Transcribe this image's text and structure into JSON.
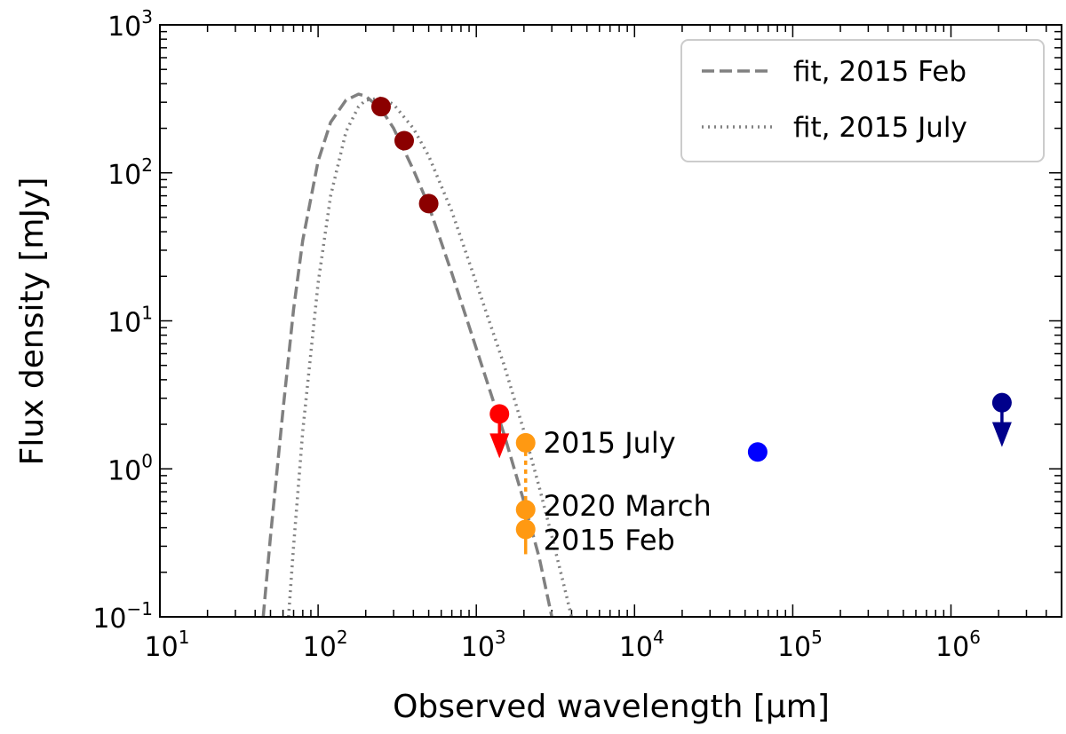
{
  "chart_data": {
    "type": "scatter",
    "title": "",
    "xlabel": "Observed wavelength [μm]",
    "ylabel": "Flux density [mJy]",
    "xscale": "log",
    "yscale": "log",
    "xlim": [
      10,
      5000000
    ],
    "ylim": [
      0.1,
      1000
    ],
    "grid": false,
    "x_ticks": [
      {
        "base": "10",
        "exp": "1",
        "value": 10
      },
      {
        "base": "10",
        "exp": "2",
        "value": 100
      },
      {
        "base": "10",
        "exp": "3",
        "value": 1000
      },
      {
        "base": "10",
        "exp": "4",
        "value": 10000
      },
      {
        "base": "10",
        "exp": "5",
        "value": 100000
      },
      {
        "base": "10",
        "exp": "6",
        "value": 1000000
      }
    ],
    "y_ticks": [
      {
        "base": "10",
        "exp": "−1",
        "value": 0.1
      },
      {
        "base": "10",
        "exp": "0",
        "value": 1
      },
      {
        "base": "10",
        "exp": "1",
        "value": 10
      },
      {
        "base": "10",
        "exp": "2",
        "value": 100
      },
      {
        "base": "10",
        "exp": "3",
        "value": 1000
      }
    ],
    "legend": {
      "placement": "upper right",
      "entries": [
        {
          "label": "fit, 2015 Feb",
          "style": "dashed",
          "color": "#808080"
        },
        {
          "label": "fit, 2015 July",
          "style": "dotted",
          "color": "#808080"
        }
      ]
    },
    "series": [
      {
        "name": "fit, 2015 Feb",
        "kind": "line",
        "style": "dashed",
        "color": "#808080",
        "x": [
          45,
          50,
          60,
          70,
          80,
          100,
          120,
          150,
          180,
          200,
          250,
          300,
          400,
          500,
          700,
          1000,
          1500,
          2000,
          2500,
          3000
        ],
        "y": [
          0.1,
          0.35,
          2.5,
          12,
          35,
          120,
          220,
          310,
          340,
          330,
          270,
          200,
          105,
          60,
          21,
          6.5,
          1.7,
          0.6,
          0.25,
          0.1
        ]
      },
      {
        "name": "fit, 2015 July",
        "kind": "line",
        "style": "dotted",
        "color": "#808080",
        "x": [
          65,
          70,
          80,
          100,
          120,
          150,
          180,
          200,
          250,
          300,
          400,
          500,
          700,
          1000,
          1500,
          2000,
          2500,
          3000,
          3500,
          4000
        ],
        "y": [
          0.1,
          0.3,
          1.8,
          18,
          70,
          190,
          280,
          310,
          320,
          290,
          200,
          130,
          55,
          18,
          5,
          1.8,
          0.75,
          0.35,
          0.18,
          0.1
        ]
      },
      {
        "name": "dark red detections",
        "kind": "points",
        "color": "#8b0000",
        "x": [
          250,
          350,
          500
        ],
        "y": [
          280,
          165,
          62
        ]
      },
      {
        "name": "red upper limit",
        "kind": "upper-limit",
        "color": "#ff0000",
        "x": [
          1400
        ],
        "y": [
          2.35
        ]
      },
      {
        "name": "orange epochs",
        "kind": "points",
        "color": "#ff9912",
        "x": [
          2050,
          2050,
          2050
        ],
        "y": [
          1.5,
          0.53,
          0.39
        ],
        "labels": [
          "2015 July",
          "2020 March",
          "2015 Feb"
        ]
      },
      {
        "name": "blue detection",
        "kind": "points",
        "color": "#0000ff",
        "x": [
          60000
        ],
        "y": [
          1.3
        ]
      },
      {
        "name": "navy upper limit",
        "kind": "upper-limit",
        "color": "#00008b",
        "x": [
          2100000
        ],
        "y": [
          2.8
        ]
      }
    ],
    "annotations": [
      {
        "text": "2015 July",
        "x": 2100,
        "y": 1.5
      },
      {
        "text": "2020 March",
        "x": 2100,
        "y": 0.56
      },
      {
        "text": "2015 Feb",
        "x": 2100,
        "y": 0.33
      }
    ]
  }
}
